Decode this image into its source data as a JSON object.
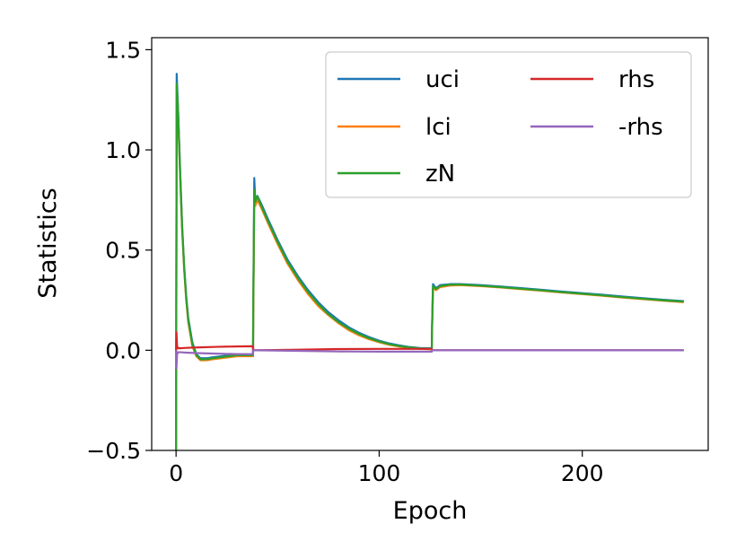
{
  "chart_data": {
    "type": "line",
    "xlabel": "Epoch",
    "ylabel": "Statistics",
    "xlim": [
      -12,
      262
    ],
    "ylim": [
      -0.5,
      1.56
    ],
    "xticks": [
      0,
      100,
      200
    ],
    "xtick_labels": [
      "0",
      "100",
      "200"
    ],
    "yticks": [
      -0.5,
      0.0,
      0.5,
      1.0,
      1.5
    ],
    "ytick_labels": [
      "−0.5",
      "0.0",
      "0.5",
      "1.0",
      "1.5"
    ],
    "grid": false,
    "legend_position": "top-right",
    "legend_columns": 2,
    "series": [
      {
        "name": "uci",
        "color": "#1f77b4",
        "x": [
          0,
          0.3,
          1,
          2,
          3,
          4,
          5,
          6,
          8,
          10,
          12,
          15,
          18,
          22,
          26,
          30,
          34,
          37.9,
          38,
          38.5,
          39,
          40,
          42,
          45,
          50,
          55,
          60,
          65,
          70,
          75,
          80,
          85,
          90,
          95,
          100,
          105,
          110,
          115,
          120,
          125.9,
          126,
          126.5,
          128,
          130,
          135,
          140,
          150,
          160,
          170,
          180,
          190,
          200,
          210,
          220,
          230,
          240,
          250
        ],
        "y": [
          -0.5,
          1.38,
          1.2,
          0.9,
          0.62,
          0.42,
          0.27,
          0.16,
          0.04,
          -0.02,
          -0.04,
          -0.04,
          -0.035,
          -0.03,
          -0.025,
          -0.02,
          -0.02,
          -0.02,
          0.2,
          0.86,
          0.75,
          0.77,
          0.73,
          0.66,
          0.55,
          0.45,
          0.37,
          0.3,
          0.24,
          0.19,
          0.15,
          0.115,
          0.088,
          0.066,
          0.048,
          0.034,
          0.024,
          0.016,
          0.011,
          0.01,
          0.1,
          0.33,
          0.31,
          0.325,
          0.33,
          0.33,
          0.325,
          0.318,
          0.31,
          0.302,
          0.293,
          0.285,
          0.277,
          0.268,
          0.26,
          0.252,
          0.245
        ]
      },
      {
        "name": "lci",
        "color": "#ff7f0e",
        "x": [
          0,
          0.3,
          1,
          2,
          3,
          4,
          5,
          6,
          8,
          10,
          12,
          15,
          18,
          22,
          26,
          30,
          34,
          37.9,
          38,
          38.5,
          39,
          40,
          42,
          45,
          50,
          55,
          60,
          65,
          70,
          75,
          80,
          85,
          90,
          95,
          100,
          105,
          110,
          115,
          120,
          125.9,
          126,
          126.5,
          128,
          130,
          135,
          140,
          150,
          160,
          170,
          180,
          190,
          200,
          210,
          220,
          230,
          240,
          250
        ],
        "y": [
          -0.5,
          1.3,
          1.17,
          0.87,
          0.6,
          0.4,
          0.25,
          0.14,
          0.02,
          -0.03,
          -0.05,
          -0.05,
          -0.045,
          -0.04,
          -0.035,
          -0.03,
          -0.03,
          -0.03,
          0.15,
          0.74,
          0.72,
          0.75,
          0.71,
          0.64,
          0.53,
          0.43,
          0.35,
          0.28,
          0.22,
          0.175,
          0.135,
          0.1,
          0.075,
          0.055,
          0.04,
          0.027,
          0.018,
          0.011,
          0.007,
          0.005,
          0.08,
          0.31,
          0.3,
          0.315,
          0.323,
          0.325,
          0.32,
          0.313,
          0.305,
          0.297,
          0.288,
          0.28,
          0.272,
          0.263,
          0.255,
          0.247,
          0.24
        ]
      },
      {
        "name": "zN",
        "color": "#2ca02c",
        "x": [
          0,
          0.3,
          1,
          2,
          3,
          4,
          5,
          6,
          8,
          10,
          12,
          15,
          18,
          22,
          26,
          30,
          34,
          37.9,
          38,
          38.5,
          39,
          40,
          42,
          45,
          50,
          55,
          60,
          65,
          70,
          75,
          80,
          85,
          90,
          95,
          100,
          105,
          110,
          115,
          120,
          125.9,
          126,
          126.5,
          128,
          130,
          135,
          140,
          150,
          160,
          170,
          180,
          190,
          200,
          210,
          220,
          230,
          240,
          250
        ],
        "y": [
          -0.5,
          1.33,
          1.19,
          0.88,
          0.61,
          0.41,
          0.26,
          0.15,
          0.03,
          -0.025,
          -0.045,
          -0.045,
          -0.04,
          -0.035,
          -0.03,
          -0.025,
          -0.025,
          -0.025,
          0.18,
          0.8,
          0.74,
          0.77,
          0.72,
          0.65,
          0.54,
          0.44,
          0.36,
          0.29,
          0.23,
          0.18,
          0.14,
          0.108,
          0.081,
          0.06,
          0.044,
          0.03,
          0.021,
          0.014,
          0.009,
          0.008,
          0.09,
          0.32,
          0.305,
          0.32,
          0.327,
          0.328,
          0.322,
          0.315,
          0.307,
          0.299,
          0.29,
          0.282,
          0.274,
          0.265,
          0.257,
          0.249,
          0.243
        ]
      },
      {
        "name": "rhs",
        "color": "#d62728",
        "x": [
          0,
          0.2,
          0.5,
          1,
          2,
          5,
          10,
          20,
          30,
          37.9,
          38,
          40,
          60,
          80,
          100,
          120,
          125.9,
          126,
          150,
          200,
          250
        ],
        "y": [
          0.0,
          0.09,
          0.02,
          0.01,
          0.01,
          0.012,
          0.014,
          0.017,
          0.019,
          0.02,
          0.0,
          0.0,
          0.003,
          0.006,
          0.007,
          0.007,
          0.007,
          0.0,
          0.0,
          0.0,
          0.0
        ]
      },
      {
        "name": "-rhs",
        "color": "#9467bd",
        "x": [
          0,
          0.2,
          0.5,
          1,
          2,
          5,
          10,
          20,
          30,
          37.9,
          38,
          40,
          60,
          80,
          100,
          120,
          125.9,
          126,
          150,
          200,
          250
        ],
        "y": [
          0.0,
          -0.09,
          -0.02,
          -0.01,
          -0.01,
          -0.012,
          -0.014,
          -0.017,
          -0.019,
          -0.02,
          0.0,
          0.0,
          -0.003,
          -0.006,
          -0.007,
          -0.007,
          -0.007,
          0.0,
          0.0,
          0.0,
          0.0
        ]
      }
    ]
  }
}
